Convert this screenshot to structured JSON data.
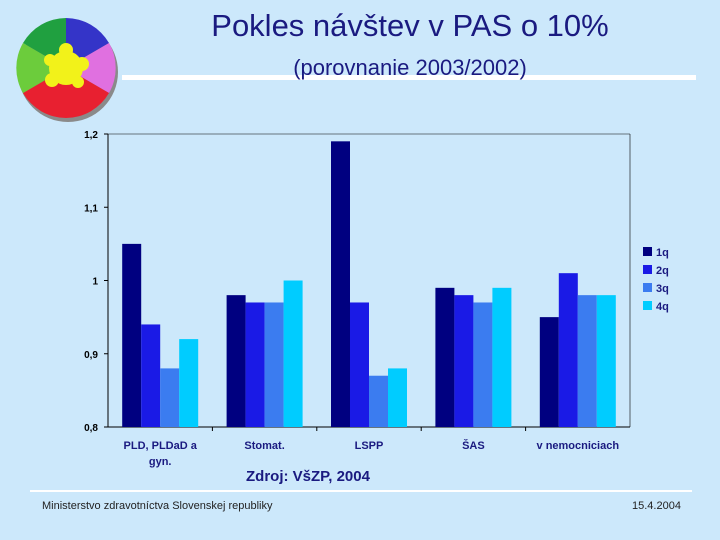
{
  "title": "Pokles návštev v PAS o 10%",
  "subtitle": "(porovnanie 2003/2002)",
  "source": "Zdroj: VšZP, 2004",
  "footer": {
    "left": "Ministerstvo zdravotníctva Slovenskej republiky",
    "right": "15.4.2004"
  },
  "logo": {
    "icon": "puzzle-logo-icon"
  },
  "chart_data": {
    "type": "bar",
    "title": "",
    "xlabel": "",
    "ylabel": "",
    "ylim": [
      0.8,
      1.2
    ],
    "yticks": [
      "1,2",
      "1,1",
      "1",
      "0,9",
      "0,8"
    ],
    "ytick_values": [
      1.2,
      1.1,
      1.0,
      0.9,
      0.8
    ],
    "grid": false,
    "legend_position": "right",
    "categories": [
      "PLD, PLDaD a gyn.",
      "Stomat.",
      "LSPP",
      "ŠAS",
      "v nemocniciach"
    ],
    "category_lines": [
      [
        "PLD, PLDaD a",
        "gyn."
      ],
      [
        "Stomat."
      ],
      [
        "LSPP"
      ],
      [
        "ŠAS"
      ],
      [
        "v nemocniciach"
      ]
    ],
    "series": [
      {
        "name": "1q",
        "color": "#000080",
        "values": [
          1.05,
          0.98,
          1.19,
          0.99,
          0.95
        ]
      },
      {
        "name": "2q",
        "color": "#1a1ae6",
        "values": [
          0.94,
          0.97,
          0.97,
          0.98,
          1.01
        ]
      },
      {
        "name": "3q",
        "color": "#3b7cf0",
        "values": [
          0.88,
          0.97,
          0.87,
          0.97,
          0.98
        ]
      },
      {
        "name": "4q",
        "color": "#00ccff",
        "values": [
          0.92,
          1.0,
          0.88,
          0.99,
          0.98
        ]
      }
    ]
  }
}
